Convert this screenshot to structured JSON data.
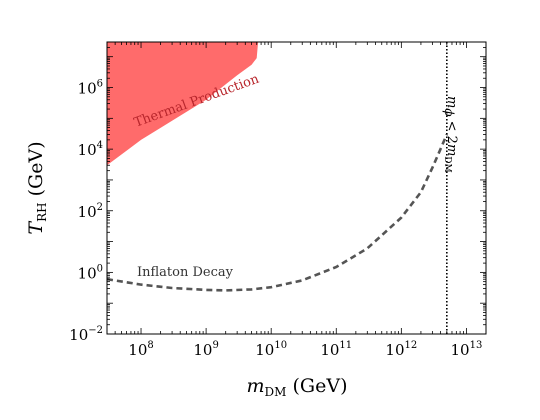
{
  "chart_data": {
    "type": "line",
    "xscale": "log",
    "yscale": "log",
    "xlim": [
      30000000.0,
      20000000000000.0
    ],
    "ylim": [
      0.01,
      30000000.0
    ],
    "grid": false,
    "xlabel": {
      "main": "m",
      "sub": "DM",
      "unit": " (GeV)"
    },
    "ylabel": {
      "main": "T",
      "sub": "RH",
      "unit": " (GeV)"
    },
    "xticks": [
      {
        "base": "10",
        "exp": "8",
        "value": 100000000.0
      },
      {
        "base": "10",
        "exp": "9",
        "value": 1000000000.0
      },
      {
        "base": "10",
        "exp": "10",
        "value": 10000000000.0
      },
      {
        "base": "10",
        "exp": "11",
        "value": 100000000000.0
      },
      {
        "base": "10",
        "exp": "12",
        "value": 1000000000000.0
      },
      {
        "base": "10",
        "exp": "13",
        "value": 10000000000000.0
      }
    ],
    "yticks": [
      {
        "base": "10",
        "exp": "−2",
        "value": 0.01
      },
      {
        "base": "10",
        "exp": "0",
        "value": 1.0
      },
      {
        "base": "10",
        "exp": "2",
        "value": 100.0
      },
      {
        "base": "10",
        "exp": "4",
        "value": 10000.0
      },
      {
        "base": "10",
        "exp": "6",
        "value": 1000000.0
      }
    ],
    "regions": [
      {
        "name": "Thermal Production",
        "color": "#ff6b6b",
        "boundary": [
          [
            30000000.0,
            3000
          ],
          [
            100000000.0,
            20000
          ],
          [
            1000000000.0,
            400000
          ],
          [
            3000000000.0,
            2500000
          ],
          [
            5000000000.0,
            5500000
          ],
          [
            6000000000.0,
            9000000
          ],
          [
            6300000000.0,
            30000000.0
          ]
        ]
      }
    ],
    "series": [
      {
        "name": "Inflaton Decay",
        "style": "dashed",
        "color": "#555555",
        "x": [
          30000000.0,
          100000000.0,
          300000000.0,
          1000000000.0,
          2000000000.0,
          5000000000.0,
          10000000000.0,
          30000000000.0,
          100000000000.0,
          300000000000.0,
          1000000000000.0,
          2000000000000.0,
          3000000000000.0,
          4000000000000.0,
          5000000000000.0
        ],
        "y": [
          0.6,
          0.4,
          0.31,
          0.27,
          0.26,
          0.28,
          0.33,
          0.55,
          1.5,
          6,
          60,
          400,
          2500,
          10000,
          30000
        ]
      }
    ],
    "vlines": [
      {
        "x": 5000000000000.0,
        "style": "dotted",
        "color": "#000000",
        "label_main": "m",
        "label_sub_phi": "ϕ",
        "label_rel": " < 2",
        "label_m": "m",
        "label_sub_dm": "DM"
      }
    ],
    "annotations": [
      {
        "text": "Thermal Production",
        "color": "#b8262c"
      },
      {
        "text": "Inflaton Decay",
        "color": "#333333"
      }
    ]
  }
}
